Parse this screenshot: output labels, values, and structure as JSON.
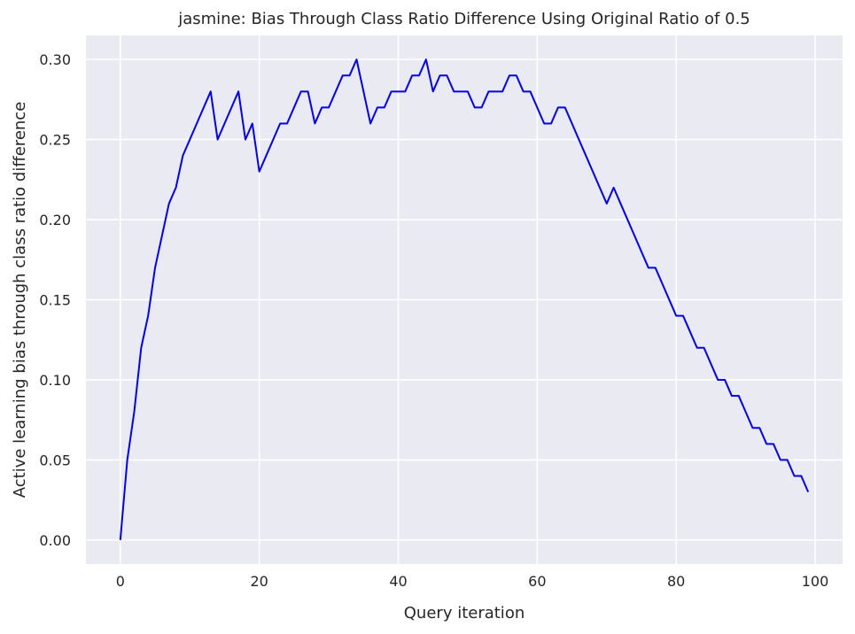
{
  "chart_data": {
    "type": "line",
    "title": "jasmine: Bias Through Class Ratio Difference Using Original Ratio of 0.5",
    "xlabel": "Query iteration",
    "ylabel": "Active learning bias through class ratio difference",
    "xlim": [
      -4.95,
      103.95
    ],
    "ylim": [
      -0.015,
      0.315
    ],
    "xticks": [
      0,
      20,
      40,
      60,
      80,
      100
    ],
    "xtick_labels": [
      "0",
      "20",
      "40",
      "60",
      "80",
      "100"
    ],
    "yticks": [
      0.0,
      0.05,
      0.1,
      0.15,
      0.2,
      0.25,
      0.3
    ],
    "ytick_labels": [
      "0.00",
      "0.05",
      "0.10",
      "0.15",
      "0.20",
      "0.25",
      "0.30"
    ],
    "grid": true,
    "colors": {
      "background": "#eaeaf2",
      "grid": "#ffffff",
      "line": "#0000ff"
    },
    "series": [
      {
        "x": [
          0,
          1,
          2,
          3,
          4,
          5,
          6,
          7,
          8,
          9,
          10,
          11,
          12,
          13,
          14,
          15,
          16,
          17,
          18,
          19,
          20,
          21,
          22,
          23,
          24,
          25,
          26,
          27,
          28,
          29,
          30,
          31,
          32,
          33,
          34,
          35,
          36,
          37,
          38,
          39,
          40,
          41,
          42,
          43,
          44,
          45,
          46,
          47,
          48,
          49,
          50,
          51,
          52,
          53,
          54,
          55,
          56,
          57,
          58,
          59,
          60,
          61,
          62,
          63,
          64,
          65,
          66,
          67,
          68,
          69,
          70,
          71,
          72,
          73,
          74,
          75,
          76,
          77,
          78,
          79,
          80,
          81,
          82,
          83,
          84,
          85,
          86,
          87,
          88,
          89,
          90,
          91,
          92,
          93,
          94,
          95,
          96,
          97,
          98,
          99
        ],
        "values": [
          0.0,
          0.05,
          0.08,
          0.12,
          0.14,
          0.17,
          0.19,
          0.21,
          0.22,
          0.24,
          0.25,
          0.26,
          0.27,
          0.28,
          0.25,
          0.26,
          0.27,
          0.28,
          0.25,
          0.26,
          0.23,
          0.24,
          0.25,
          0.26,
          0.26,
          0.27,
          0.28,
          0.28,
          0.26,
          0.27,
          0.27,
          0.28,
          0.29,
          0.29,
          0.3,
          0.28,
          0.26,
          0.27,
          0.27,
          0.28,
          0.28,
          0.28,
          0.29,
          0.29,
          0.3,
          0.28,
          0.29,
          0.29,
          0.28,
          0.28,
          0.28,
          0.27,
          0.27,
          0.28,
          0.28,
          0.28,
          0.29,
          0.29,
          0.28,
          0.28,
          0.27,
          0.26,
          0.26,
          0.27,
          0.27,
          0.26,
          0.25,
          0.24,
          0.23,
          0.22,
          0.21,
          0.22,
          0.21,
          0.2,
          0.19,
          0.18,
          0.17,
          0.17,
          0.16,
          0.15,
          0.14,
          0.14,
          0.13,
          0.12,
          0.12,
          0.11,
          0.1,
          0.1,
          0.09,
          0.09,
          0.08,
          0.07,
          0.07,
          0.06,
          0.06,
          0.05,
          0.05,
          0.04,
          0.04,
          0.03
        ]
      }
    ]
  }
}
